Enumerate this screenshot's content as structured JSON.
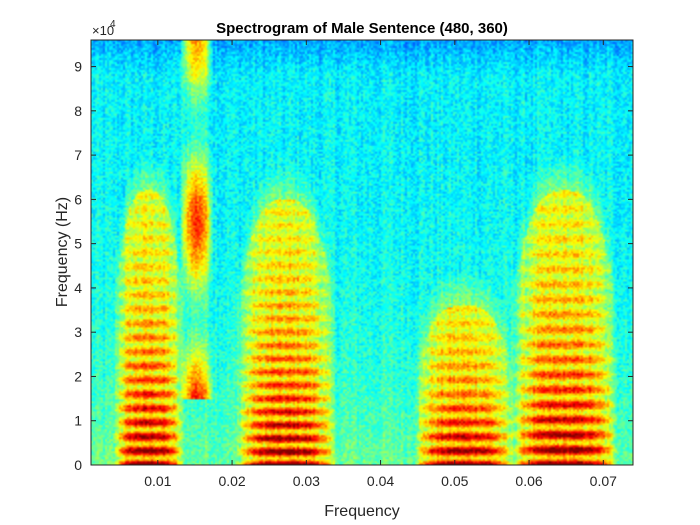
{
  "chart_data": {
    "type": "heatmap",
    "title": "Spectrogram of Male Sentence (480, 360)",
    "xlabel": "Frequency",
    "ylabel": "Frequency (Hz)",
    "xlim": [
      0.001,
      0.074
    ],
    "ylim": [
      0,
      96000
    ],
    "x_ticks": [
      0.01,
      0.02,
      0.03,
      0.04,
      0.05,
      0.06,
      0.07
    ],
    "x_tick_labels": [
      "0.01",
      "0.02",
      "0.03",
      "0.04",
      "0.05",
      "0.06",
      "0.07"
    ],
    "y_ticks": [
      0,
      10000,
      20000,
      30000,
      40000,
      50000,
      60000,
      70000,
      80000,
      90000
    ],
    "y_tick_labels": [
      "0",
      "1",
      "2",
      "3",
      "4",
      "5",
      "6",
      "7",
      "8",
      "9"
    ],
    "y_exponent_label": "×10",
    "y_exponent_power": "4",
    "colormap": "jet",
    "grid": false,
    "voiced_segments": [
      {
        "start": 0.004,
        "end": 0.0135,
        "f0": 3200,
        "max_freq": 62000
      },
      {
        "start": 0.0205,
        "end": 0.034,
        "f0": 3000,
        "max_freq": 60000
      },
      {
        "start": 0.0445,
        "end": 0.058,
        "f0": 3200,
        "max_freq": 36000
      },
      {
        "start": 0.0575,
        "end": 0.072,
        "f0": 3400,
        "max_freq": 62000
      }
    ],
    "fricative_segments": [
      {
        "start": 0.013,
        "end": 0.0175,
        "low_freq": 15000,
        "high_freq": 96000
      }
    ]
  }
}
